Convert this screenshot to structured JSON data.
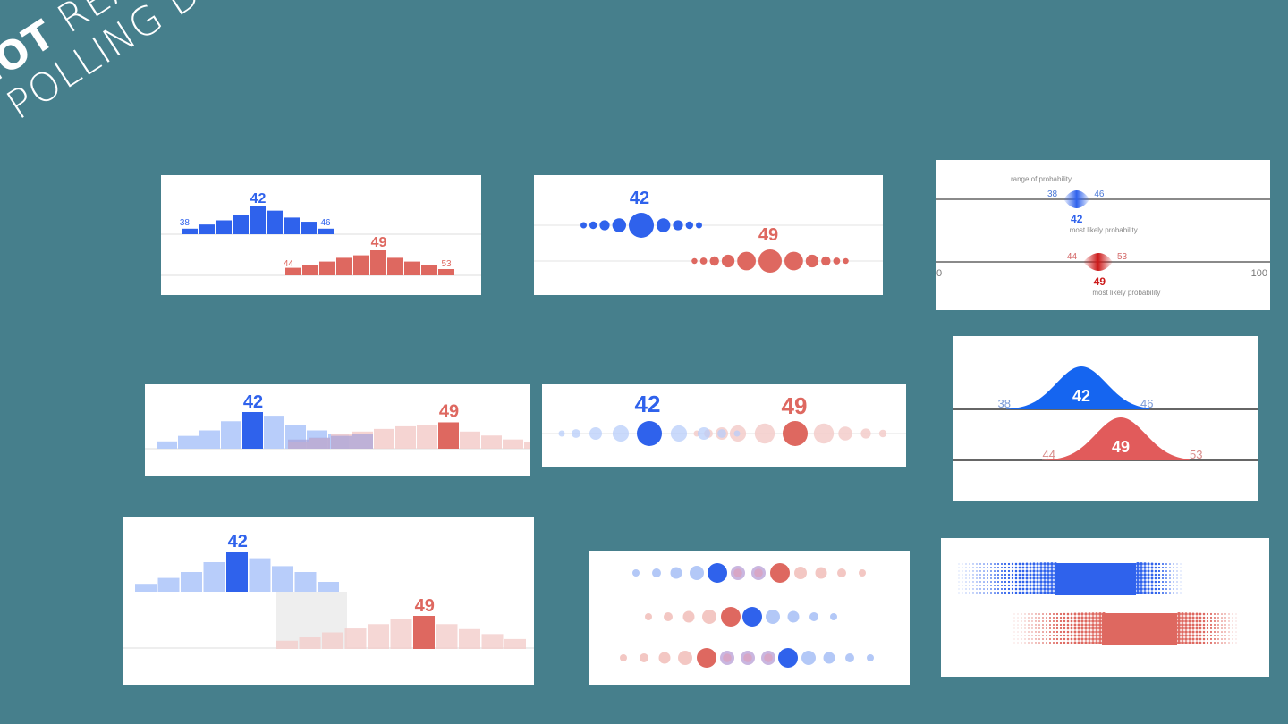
{
  "stamp": {
    "bold": "NOT",
    "rest1": "REAL",
    "line2": "POLLING DATA"
  },
  "colors": {
    "background": "#467f8c",
    "blue": "#2f62ec",
    "blue_light": "#b8cdfa",
    "red": "#de6860",
    "red_light": "#f3cdca"
  },
  "chart_data": [
    {
      "type": "bar",
      "id": "split-histogram",
      "series": [
        {
          "peak_label": "42",
          "low": "38",
          "high": "46",
          "values": [
            0.2,
            0.35,
            0.5,
            0.7,
            1.0,
            0.85,
            0.6,
            0.45,
            0.2
          ]
        },
        {
          "peak_label": "49",
          "low": "44",
          "high": "53",
          "values": [
            0.3,
            0.4,
            0.55,
            0.7,
            0.8,
            1.0,
            0.7,
            0.55,
            0.4,
            0.25
          ]
        }
      ]
    },
    {
      "type": "scatter",
      "id": "split-dots",
      "series": [
        {
          "peak_label": "42",
          "radii": [
            0.25,
            0.3,
            0.4,
            0.55,
            1.0,
            0.55,
            0.4,
            0.3,
            0.25
          ]
        },
        {
          "peak_label": "49",
          "radii": [
            0.25,
            0.3,
            0.4,
            0.55,
            0.8,
            1.0,
            0.8,
            0.55,
            0.4,
            0.3,
            0.25
          ]
        }
      ]
    },
    {
      "type": "line",
      "id": "range-of-probability",
      "title": "range of probability",
      "xlim": [
        0,
        100
      ],
      "tick_labels": [
        "0",
        "100"
      ],
      "series": [
        {
          "low": "38",
          "high": "46",
          "peak_label": "42",
          "caption": "most likely probability",
          "low_val": 38,
          "high_val": 46,
          "peak_val": 42
        },
        {
          "low": "44",
          "high": "53",
          "peak_label": "49",
          "caption": "most likely probability",
          "low_val": 44,
          "high_val": 53,
          "peak_val": 49
        }
      ]
    },
    {
      "type": "bar",
      "id": "overlap-histogram",
      "series": [
        {
          "peak_label": "42",
          "values": [
            0.2,
            0.35,
            0.5,
            0.75,
            1.0,
            0.9,
            0.65,
            0.5,
            0.4
          ]
        },
        {
          "peak_label": "49",
          "values": [
            0.25,
            0.4,
            0.55,
            0.65,
            0.75,
            0.85,
            0.9,
            1.0,
            0.65,
            0.5,
            0.35,
            0.25
          ]
        }
      ]
    },
    {
      "type": "scatter",
      "id": "overlap-dots",
      "series": [
        {
          "peak_label": "42",
          "radii": [
            0.25,
            0.35,
            0.5,
            0.65,
            1.0,
            0.65,
            0.5,
            0.35,
            0.25
          ]
        },
        {
          "peak_label": "49",
          "radii": [
            0.25,
            0.35,
            0.5,
            0.65,
            0.8,
            1.0,
            0.8,
            0.55,
            0.4,
            0.3
          ]
        }
      ]
    },
    {
      "type": "area",
      "id": "density-curves",
      "series": [
        {
          "low": "38",
          "high": "46",
          "peak_label": "42"
        },
        {
          "low": "44",
          "high": "53",
          "peak_label": "49"
        }
      ]
    },
    {
      "type": "bar",
      "id": "stacked-histogram",
      "series": [
        {
          "peak_label": "42",
          "values": [
            0.2,
            0.35,
            0.5,
            0.75,
            1.0,
            0.85,
            0.65,
            0.5,
            0.25
          ]
        },
        {
          "peak_label": "49",
          "values": [
            0.25,
            0.35,
            0.5,
            0.62,
            0.75,
            0.9,
            1.0,
            0.75,
            0.6,
            0.45,
            0.3
          ]
        }
      ]
    },
    {
      "type": "scatter",
      "id": "dot-rows",
      "rows": 3
    },
    {
      "type": "heatmap",
      "id": "dither-bands",
      "rows": 2
    }
  ]
}
